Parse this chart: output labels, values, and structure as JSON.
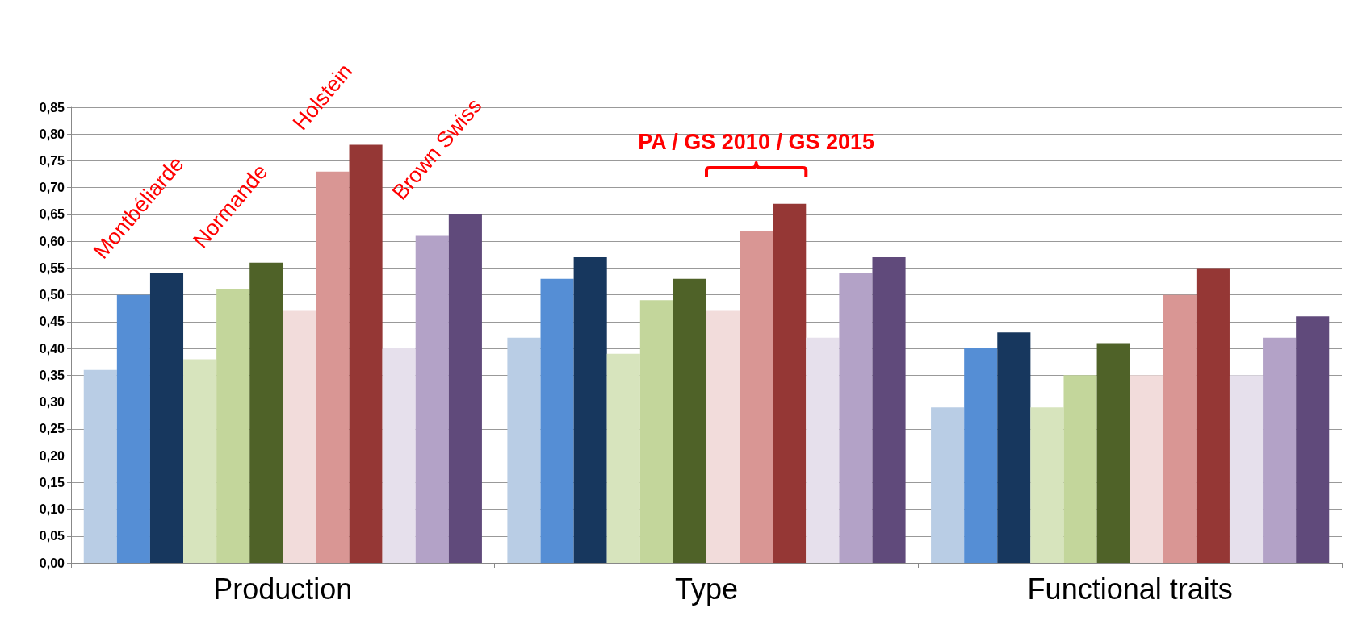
{
  "chart_data": {
    "type": "bar",
    "categories": [
      "Production",
      "Type",
      "Functional traits"
    ],
    "series": [
      {
        "color": "#b9cde5",
        "values": [
          0.36,
          0.42,
          0.29
        ]
      },
      {
        "color": "#558ed5",
        "values": [
          0.5,
          0.53,
          0.4
        ]
      },
      {
        "color": "#17375e",
        "values": [
          0.54,
          0.57,
          0.43
        ]
      },
      {
        "color": "#d7e4bd",
        "values": [
          0.38,
          0.39,
          0.29
        ]
      },
      {
        "color": "#c3d69b",
        "values": [
          0.51,
          0.49,
          0.35
        ]
      },
      {
        "color": "#4f6228",
        "values": [
          0.56,
          0.53,
          0.41
        ]
      },
      {
        "color": "#f2dcdb",
        "values": [
          0.47,
          0.47,
          0.35
        ]
      },
      {
        "color": "#d99694",
        "values": [
          0.73,
          0.62,
          0.5
        ]
      },
      {
        "color": "#953735",
        "values": [
          0.78,
          0.67,
          0.55
        ]
      },
      {
        "color": "#e6e0ec",
        "values": [
          0.4,
          0.42,
          0.35
        ]
      },
      {
        "color": "#b3a2c7",
        "values": [
          0.61,
          0.54,
          0.42
        ]
      },
      {
        "color": "#604a7b",
        "values": [
          0.65,
          0.57,
          0.46
        ]
      }
    ],
    "ylim": [
      0,
      0.85
    ],
    "yticks": [
      {
        "value": 0,
        "label": "0,00"
      },
      {
        "value": 0.05,
        "label": "0,05"
      },
      {
        "value": 0.1,
        "label": "0,10"
      },
      {
        "value": 0.15,
        "label": "0,15"
      },
      {
        "value": 0.2,
        "label": "0,20"
      },
      {
        "value": 0.25,
        "label": "0,25"
      },
      {
        "value": 0.3,
        "label": "0,30"
      },
      {
        "value": 0.35,
        "label": "0,35"
      },
      {
        "value": 0.4,
        "label": "0,40"
      },
      {
        "value": 0.45,
        "label": "0,45"
      },
      {
        "value": 0.5,
        "label": "0,50"
      },
      {
        "value": 0.55,
        "label": "0,55"
      },
      {
        "value": 0.6,
        "label": "0,60"
      },
      {
        "value": 0.65,
        "label": "0,65"
      },
      {
        "value": 0.7,
        "label": "0,70"
      },
      {
        "value": 0.75,
        "label": "0,75"
      },
      {
        "value": 0.8,
        "label": "0,80"
      },
      {
        "value": 0.85,
        "label": "0,85"
      }
    ],
    "grid": "y",
    "annotations": [
      "Montbéliarde",
      "Normande",
      "Holstein",
      "Brown Swiss",
      "PA / GS 2010 / GS 2015"
    ]
  }
}
